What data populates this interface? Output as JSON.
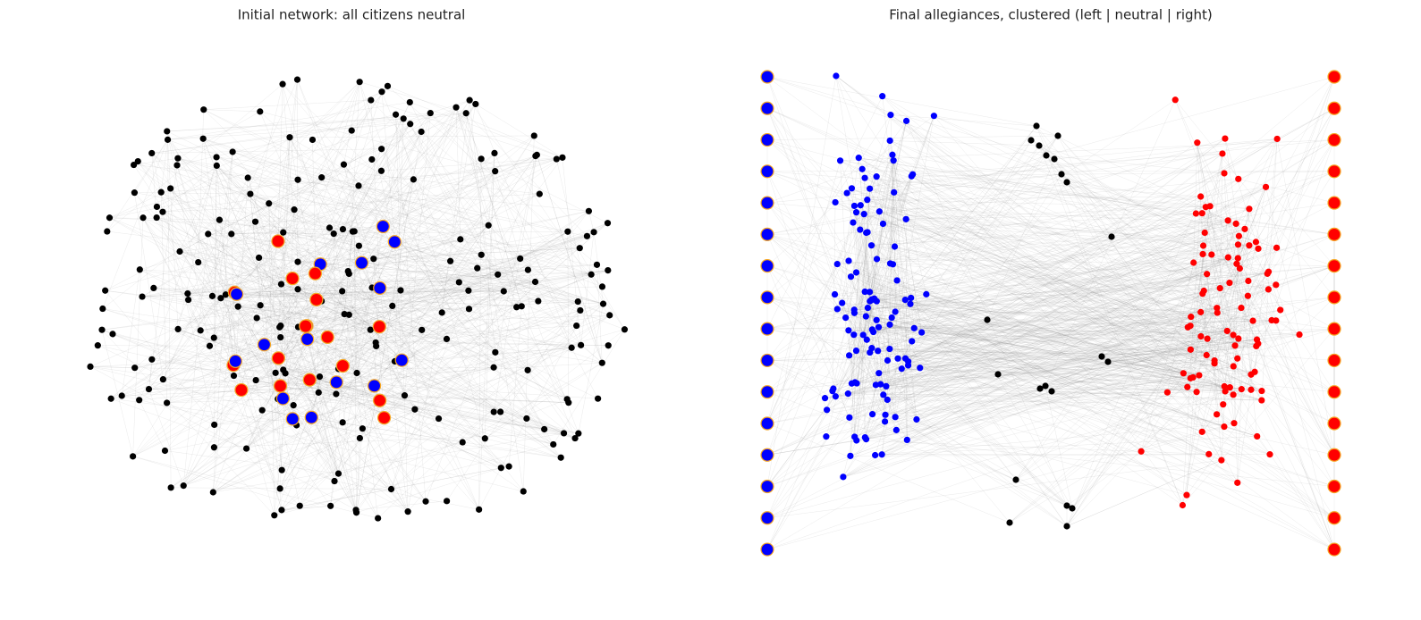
{
  "panels": [
    {
      "title": "Initial network: all citizens neutral"
    },
    {
      "title": "Final allegiances, clustered (left | neutral | right)"
    }
  ]
}
